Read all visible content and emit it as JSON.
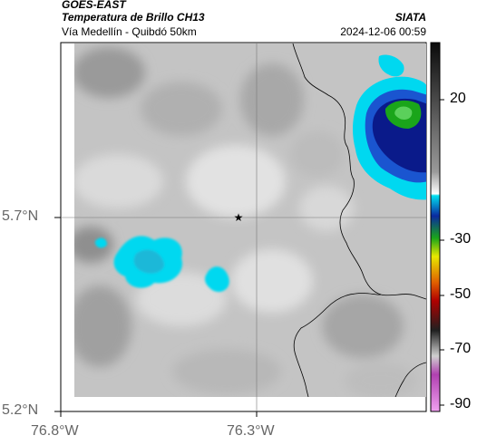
{
  "header": {
    "satellite": "GOES-EAST",
    "product": "Temperatura de Brillo CH13",
    "region": "Vía Medellín - Quibdó 50km",
    "organization": "SIATA",
    "timestamp": "2024-12-06 00:59"
  },
  "axes": {
    "lat_ticks": [
      "5.7°N",
      "5.2°N"
    ],
    "lon_ticks": [
      "76.8°W",
      "76.3°W"
    ]
  },
  "colorbar": {
    "ticks": [
      "20",
      "-30",
      "-50",
      "-70",
      "-90"
    ]
  },
  "colors": {
    "cold_cloud_cyan": "#00d8f0",
    "deep_blue": "#0a1a8a",
    "green_core": "#1aa51a",
    "background_gray": "#c8c8c8"
  }
}
